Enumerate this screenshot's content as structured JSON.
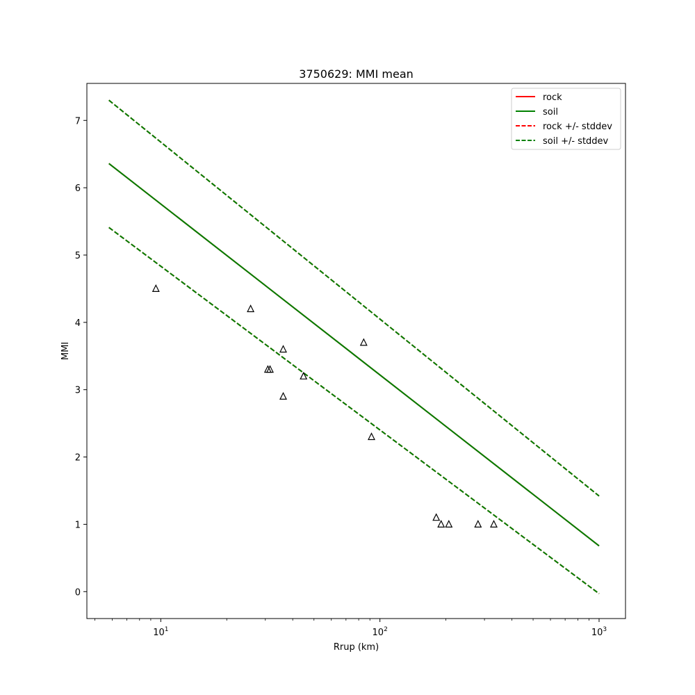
{
  "chart_data": {
    "type": "line",
    "title": "3750629: MMI mean",
    "xlabel": "Rrup (km)",
    "ylabel": "MMI",
    "xscale": "log",
    "xlim": [
      4.6,
      1320
    ],
    "ylim": [
      -0.4,
      7.55
    ],
    "grid": false,
    "legend_position": "top-right",
    "x_ticks": [
      {
        "value": 10,
        "base": "10",
        "exp": "1"
      },
      {
        "value": 100,
        "base": "10",
        "exp": "2"
      },
      {
        "value": 1000,
        "base": "10",
        "exp": "3"
      }
    ],
    "y_ticks": [
      0,
      1,
      2,
      3,
      4,
      5,
      6,
      7
    ],
    "series": [
      {
        "name": "rock",
        "color": "#ff0000",
        "dash": "solid",
        "x": [
          5.8,
          1000
        ],
        "y": [
          6.36,
          0.68
        ]
      },
      {
        "name": "soil",
        "color": "#008000",
        "dash": "solid",
        "x": [
          5.8,
          1000
        ],
        "y": [
          6.36,
          0.68
        ]
      },
      {
        "name": "rock +/- stddev",
        "color": "#ff0000",
        "dash": "dashed",
        "x": [
          5.8,
          1000
        ],
        "y": [
          7.3,
          1.42
        ]
      },
      {
        "name": "soil +/- stddev",
        "color": "#008000",
        "dash": "dashed",
        "x": [
          5.8,
          1000
        ],
        "y": [
          7.3,
          1.42
        ]
      }
    ],
    "lower_band": {
      "x": [
        5.8,
        1000
      ],
      "y": [
        5.41,
        -0.03
      ]
    },
    "observations": {
      "marker": "triangle",
      "x": [
        9.5,
        25.7,
        30.8,
        31.5,
        36.2,
        36.2,
        44.8,
        84.3,
        91.5,
        180.7,
        190.2,
        206.3,
        280.3,
        330.9
      ],
      "y": [
        4.5,
        4.2,
        3.3,
        3.3,
        3.6,
        2.9,
        3.2,
        3.7,
        2.3,
        1.1,
        1.0,
        1.0,
        1.0,
        1.0
      ]
    }
  }
}
